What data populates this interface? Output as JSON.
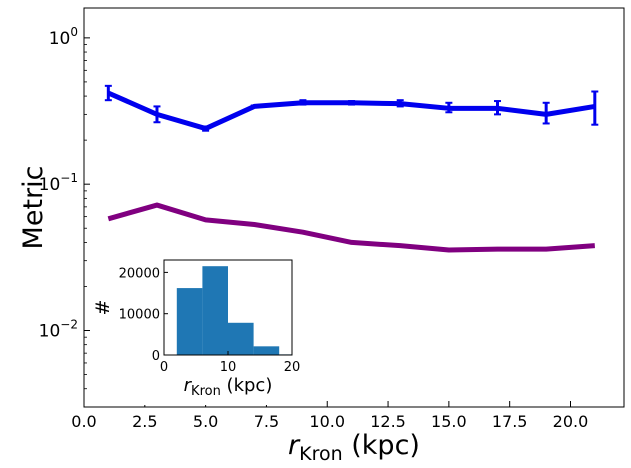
{
  "chart_data": [
    {
      "type": "line",
      "title": "",
      "xlabel_main": "r",
      "xlabel_sub": "Kron",
      "xlabel_unit": " (kpc)",
      "ylabel": "Metric",
      "xlim": [
        0,
        22.2
      ],
      "ylim": [
        0.003,
        1.6
      ],
      "yscale": "log",
      "grid": false,
      "x_ticks": [
        {
          "value": 0.0,
          "label": "0.0"
        },
        {
          "value": 2.5,
          "label": "2.5"
        },
        {
          "value": 5.0,
          "label": "5.0"
        },
        {
          "value": 7.5,
          "label": "7.5"
        },
        {
          "value": 10.0,
          "label": "10.0"
        },
        {
          "value": 12.5,
          "label": "12.5"
        },
        {
          "value": 15.0,
          "label": "15.0"
        },
        {
          "value": 17.5,
          "label": "17.5"
        },
        {
          "value": 20.0,
          "label": "20.0"
        }
      ],
      "y_ticks": [
        {
          "value": 0.01,
          "base": "10",
          "exp": "−2"
        },
        {
          "value": 0.1,
          "base": "10",
          "exp": "−1"
        },
        {
          "value": 1,
          "base": "10",
          "exp": "0"
        }
      ],
      "series": [
        {
          "color": "#0000ee",
          "x": [
            1,
            3,
            5,
            7,
            9,
            11,
            13,
            15,
            17,
            19,
            21
          ],
          "y": [
            0.42,
            0.3,
            0.24,
            0.34,
            0.36,
            0.36,
            0.355,
            0.33,
            0.33,
            0.3,
            0.34
          ],
          "err_low": [
            0.375,
            0.265,
            0.232,
            0.335,
            0.35,
            0.35,
            0.34,
            0.31,
            0.3,
            0.26,
            0.255
          ],
          "err_high": [
            0.47,
            0.34,
            0.248,
            0.345,
            0.375,
            0.37,
            0.375,
            0.36,
            0.37,
            0.36,
            0.43
          ]
        },
        {
          "color": "#800080",
          "x": [
            1,
            3,
            5,
            7,
            9,
            11,
            13,
            15,
            17,
            19,
            21
          ],
          "y": [
            0.058,
            0.072,
            0.057,
            0.053,
            0.047,
            0.04,
            0.038,
            0.0355,
            0.036,
            0.036,
            0.038
          ]
        }
      ]
    },
    {
      "type": "bar",
      "inset": true,
      "xlabel_main": "r",
      "xlabel_sub": "Kron",
      "xlabel_unit": " (kpc)",
      "ylabel": "#",
      "xlim": [
        0,
        20
      ],
      "ylim": [
        0,
        23000
      ],
      "color": "#1f77b4",
      "bins": [
        {
          "from": 2,
          "to": 6,
          "count": 16200
        },
        {
          "from": 6,
          "to": 10,
          "count": 21500
        },
        {
          "from": 10,
          "to": 14,
          "count": 7800
        },
        {
          "from": 14,
          "to": 18,
          "count": 2100
        },
        {
          "from": 18,
          "to": 20,
          "count": 150
        }
      ],
      "x_ticks": [
        {
          "value": 0,
          "label": "0"
        },
        {
          "value": 10,
          "label": "10"
        },
        {
          "value": 20,
          "label": "20"
        }
      ],
      "y_ticks": [
        {
          "value": 0,
          "label": "0"
        },
        {
          "value": 10000,
          "label": "10000"
        },
        {
          "value": 20000,
          "label": "20000"
        }
      ]
    }
  ]
}
